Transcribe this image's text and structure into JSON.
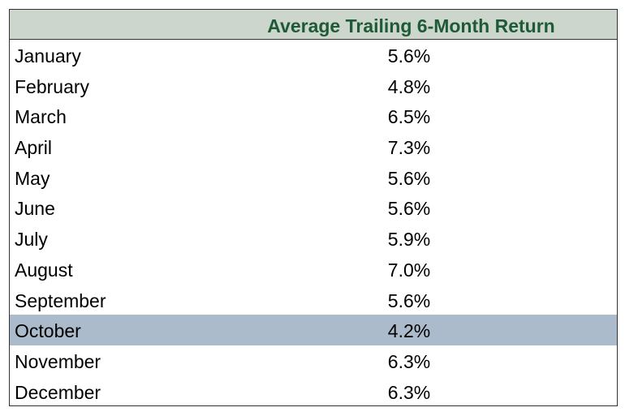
{
  "chart_data": {
    "type": "table",
    "columns": [
      "",
      "Average Trailing 6-Month Return"
    ],
    "header": "Average Trailing 6-Month Return",
    "categories": [
      "January",
      "February",
      "March",
      "April",
      "May",
      "June",
      "July",
      "August",
      "September",
      "October",
      "November",
      "December"
    ],
    "values": [
      5.6,
      4.8,
      6.5,
      7.3,
      5.6,
      5.6,
      5.9,
      7.0,
      5.6,
      4.2,
      6.3,
      6.3
    ],
    "rows": [
      {
        "month": "January",
        "value": "5.6%"
      },
      {
        "month": "February",
        "value": "4.8%"
      },
      {
        "month": "March",
        "value": "6.5%"
      },
      {
        "month": "April",
        "value": "7.3%"
      },
      {
        "month": "May",
        "value": "5.6%"
      },
      {
        "month": "June",
        "value": "5.6%"
      },
      {
        "month": "July",
        "value": "5.9%"
      },
      {
        "month": "August",
        "value": "7.0%"
      },
      {
        "month": "September",
        "value": "5.6%"
      },
      {
        "month": "October",
        "value": "4.2%"
      },
      {
        "month": "November",
        "value": "6.3%"
      },
      {
        "month": "December",
        "value": "6.3%"
      }
    ],
    "highlighted_row": "October"
  },
  "colors": {
    "header_background": "#cdd6cc",
    "header_text": "#1f5a36",
    "highlight_background": "#abbbcb",
    "border": "#333333"
  }
}
